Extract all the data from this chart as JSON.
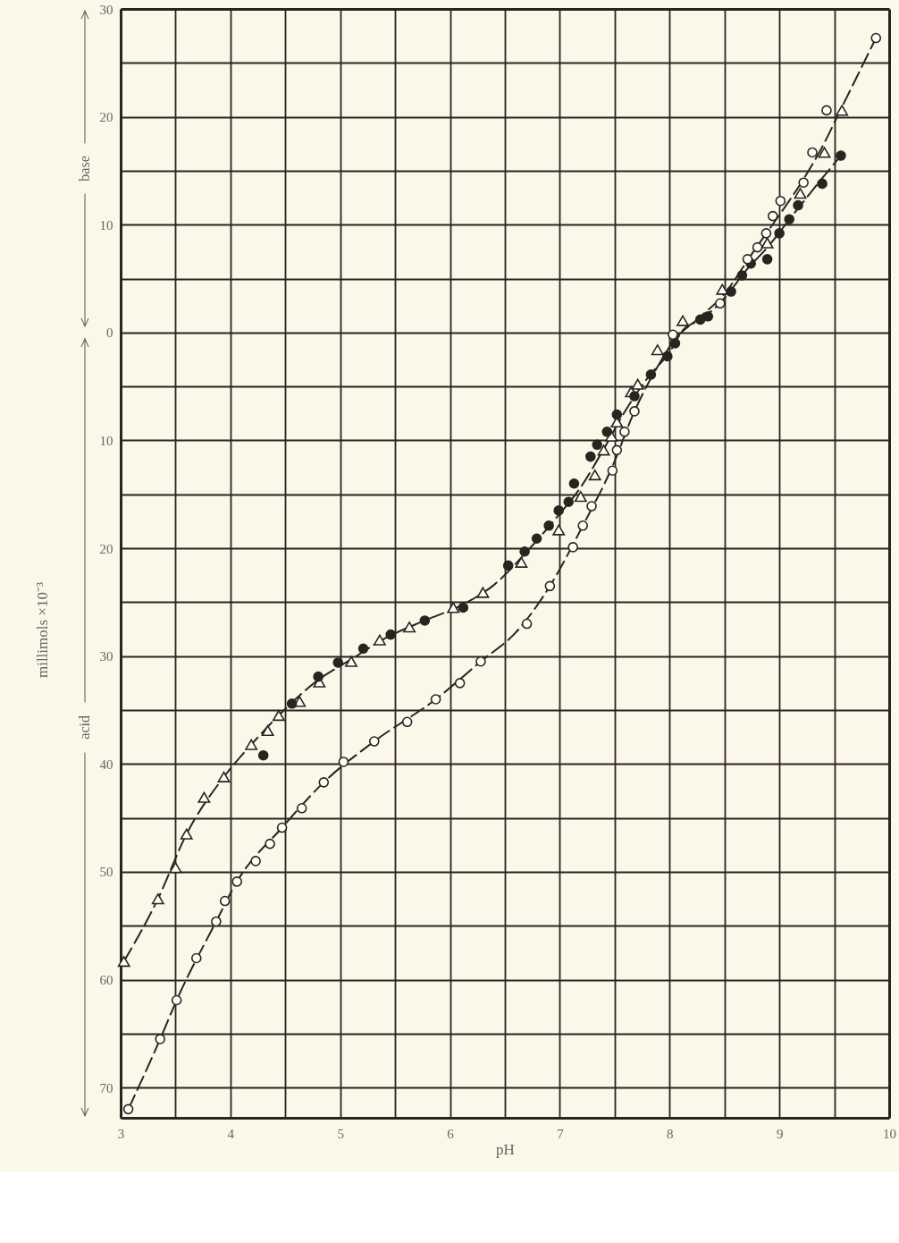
{
  "chart_data": {
    "type": "scatter",
    "xlabel": "pH",
    "ylabel": "millimols ×10⁻³",
    "annotations": [
      "base",
      "acid"
    ],
    "xlim": [
      3,
      10
    ],
    "ylim": [
      -72.8,
      30
    ],
    "xticks": [
      3,
      {
        "value": 3.5,
        "label": null
      },
      4,
      {
        "value": 4.5,
        "label": null
      },
      5,
      {
        "value": 5.5,
        "label": null
      },
      6,
      {
        "value": 6.5,
        "label": null
      },
      7,
      {
        "value": 7.5,
        "label": null
      },
      8,
      {
        "value": 8.5,
        "label": null
      },
      9,
      {
        "value": 9.5,
        "label": null
      },
      10
    ],
    "yticks": [
      30,
      {
        "value": 25,
        "label": null
      },
      20,
      {
        "value": 15,
        "label": null
      },
      10,
      {
        "value": 5,
        "label": null
      },
      0,
      {
        "value": -5,
        "label": null
      },
      {
        "value": -10,
        "label": "10"
      },
      {
        "value": -15,
        "label": null
      },
      {
        "value": -20,
        "label": "20"
      },
      {
        "value": -25,
        "label": null
      },
      {
        "value": -30,
        "label": "30"
      },
      {
        "value": -35,
        "label": null
      },
      {
        "value": -40,
        "label": "40"
      },
      {
        "value": -45,
        "label": null
      },
      {
        "value": -50,
        "label": "50"
      },
      {
        "value": -55,
        "label": null
      },
      {
        "value": -60,
        "label": "60"
      },
      {
        "value": -65,
        "label": null
      },
      {
        "value": -70,
        "label": "70"
      }
    ],
    "grid": true,
    "series": [
      {
        "type": "line",
        "line_style": "dashed",
        "color": "#2a2420",
        "x": [
          3.03,
          3.34,
          3.6,
          3.94,
          4.19,
          4.44,
          4.8,
          5.1,
          5.4,
          5.77,
          6.1,
          6.4,
          6.7,
          6.95,
          7.2,
          7.4,
          7.6,
          7.8,
          8.0,
          8.12,
          8.3,
          8.5,
          8.7,
          8.9,
          9.1,
          9.35,
          9.56
        ],
        "values": [
          -58.3,
          -52.5,
          -46.5,
          -41.2,
          -38.2,
          -35.5,
          -32.2,
          -30.3,
          -28.4,
          -26.7,
          -25.3,
          -23.4,
          -20.3,
          -17.4,
          -14.2,
          -10.8,
          -7.2,
          -4.2,
          -1.8,
          0.2,
          1.3,
          3.2,
          5.8,
          8.0,
          10.6,
          13.8,
          16.4
        ]
      },
      {
        "type": "line",
        "line_style": "dashed",
        "color": "#2a2420",
        "x": [
          3.07,
          3.36,
          3.51,
          3.87,
          4.06,
          4.47,
          4.85,
          5.31,
          5.87,
          6.28,
          6.6,
          6.91,
          7.21,
          7.48,
          7.68,
          7.9,
          8.05,
          8.25,
          8.5,
          8.75,
          9.0,
          9.2,
          9.4,
          9.56,
          9.88
        ],
        "values": [
          -72.0,
          -65.5,
          -61.9,
          -54.6,
          -50.9,
          -45.9,
          -41.7,
          -37.9,
          -34.0,
          -30.5,
          -27.8,
          -23.5,
          -17.9,
          -12.4,
          -7.3,
          -3.0,
          -0.6,
          1.2,
          3.6,
          7.3,
          10.9,
          13.9,
          17.4,
          20.7,
          27.3
        ]
      },
      {
        "marker": "triangle",
        "color": "#fffdf6",
        "x": [
          3.03,
          3.34,
          3.5,
          3.6,
          3.76,
          3.94,
          4.19,
          4.34,
          4.44,
          4.63,
          4.81,
          5.1,
          5.36,
          5.63,
          6.03,
          6.3,
          6.65,
          6.99,
          7.19,
          7.32,
          7.4,
          7.47,
          7.52,
          7.65,
          7.71,
          7.89,
          8.12,
          8.48,
          8.89,
          9.19,
          9.41,
          9.57
        ],
        "values": [
          -58.3,
          -52.5,
          -49.6,
          -46.5,
          -43.1,
          -41.2,
          -38.2,
          -36.9,
          -35.5,
          -34.2,
          -32.4,
          -30.5,
          -28.5,
          -27.3,
          -25.5,
          -24.1,
          -21.3,
          -18.3,
          -15.2,
          -13.2,
          -10.9,
          -9.6,
          -8.3,
          -5.5,
          -4.8,
          -1.6,
          1.1,
          4.0,
          8.3,
          12.9,
          16.7,
          20.6
        ]
      },
      {
        "marker": "circle",
        "color": "#2a2420",
        "x": [
          4.3,
          4.56,
          4.8,
          4.98,
          5.21,
          5.46,
          5.77,
          6.12,
          6.53,
          6.68,
          6.79,
          6.9,
          6.99,
          7.08,
          7.13,
          7.28,
          7.34,
          7.43,
          7.52,
          7.68,
          7.83,
          7.98,
          8.05,
          8.28,
          8.35,
          8.56,
          8.66,
          8.74,
          8.89,
          9.0,
          9.09,
          9.17,
          9.39,
          9.56
        ],
        "values": [
          -39.2,
          -34.4,
          -31.9,
          -30.6,
          -29.3,
          -28.0,
          -26.7,
          -25.5,
          -21.6,
          -20.3,
          -19.1,
          -17.9,
          -16.5,
          -15.7,
          -14.0,
          -11.5,
          -10.4,
          -9.2,
          -7.6,
          -5.9,
          -3.9,
          -2.2,
          -1.0,
          1.2,
          1.5,
          3.8,
          5.3,
          6.4,
          6.8,
          9.2,
          10.5,
          11.8,
          13.8,
          16.4
        ]
      },
      {
        "marker": "circle",
        "color": "#fffdf6",
        "x": [
          3.07,
          3.36,
          3.51,
          3.69,
          3.87,
          3.95,
          4.06,
          4.23,
          4.36,
          4.47,
          4.65,
          4.85,
          5.03,
          5.31,
          5.61,
          5.87,
          6.09,
          6.28,
          6.7,
          6.91,
          7.12,
          7.21,
          7.29,
          7.48,
          7.52,
          7.59,
          7.68,
          8.03,
          8.46,
          8.71,
          8.8,
          8.88,
          8.94,
          9.01,
          9.22,
          9.3,
          9.43,
          9.88
        ],
        "values": [
          -72.0,
          -65.5,
          -61.9,
          -58.0,
          -54.6,
          -52.7,
          -50.9,
          -49.0,
          -47.4,
          -45.9,
          -44.1,
          -41.7,
          -39.8,
          -37.9,
          -36.1,
          -34.0,
          -32.5,
          -30.5,
          -27.0,
          -23.5,
          -19.9,
          -17.9,
          -16.1,
          -12.8,
          -10.9,
          -9.2,
          -7.3,
          -0.2,
          2.7,
          6.8,
          7.9,
          9.2,
          10.8,
          12.2,
          13.9,
          16.7,
          20.6,
          27.3
        ]
      }
    ]
  }
}
